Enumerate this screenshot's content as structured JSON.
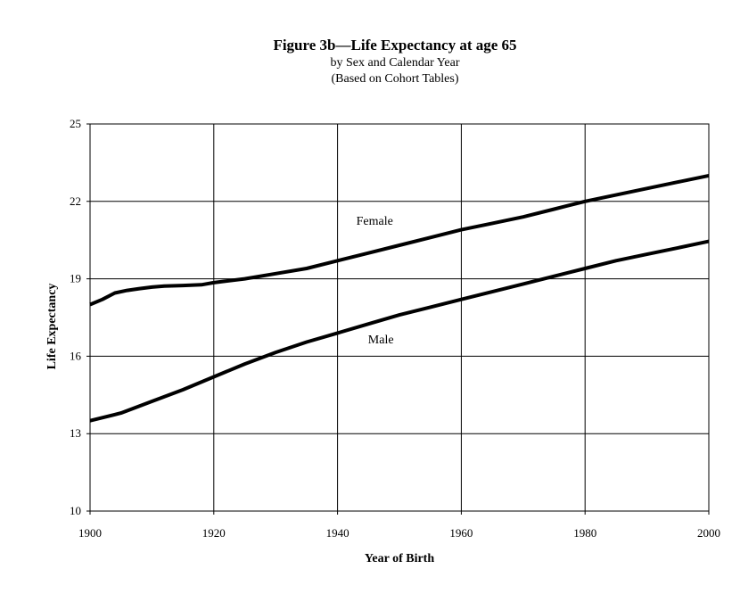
{
  "chart_data": {
    "type": "line",
    "title": "Figure 3b—Life Expectancy at age 65",
    "subtitle_1": "by Sex and Calendar Year",
    "subtitle_2": "(Based on Cohort Tables)",
    "xlabel": "Year of Birth",
    "ylabel": "Life Expectancy",
    "xlim": [
      1900,
      2000
    ],
    "ylim": [
      10,
      25
    ],
    "x_ticks": [
      1900,
      1920,
      1940,
      1960,
      1980,
      2000
    ],
    "y_ticks": [
      10,
      13,
      16,
      19,
      22,
      25
    ],
    "grid": true,
    "legend": "none",
    "series": [
      {
        "name": "Female",
        "color": "#000000",
        "x": [
          1900,
          1902,
          1904,
          1906,
          1908,
          1910,
          1912,
          1915,
          1918,
          1920,
          1925,
          1930,
          1935,
          1940,
          1945,
          1950,
          1955,
          1960,
          1965,
          1970,
          1975,
          1980,
          1985,
          1990,
          1995,
          2000
        ],
        "y": [
          18.0,
          18.2,
          18.45,
          18.55,
          18.62,
          18.68,
          18.72,
          18.74,
          18.77,
          18.85,
          19.0,
          19.2,
          19.4,
          19.7,
          20.0,
          20.3,
          20.6,
          20.9,
          21.15,
          21.4,
          21.7,
          22.0,
          22.25,
          22.5,
          22.75,
          23.0
        ],
        "label": "Female"
      },
      {
        "name": "Male",
        "color": "#000000",
        "x": [
          1900,
          1905,
          1910,
          1915,
          1920,
          1925,
          1930,
          1935,
          1940,
          1945,
          1950,
          1955,
          1960,
          1965,
          1970,
          1975,
          1980,
          1985,
          1990,
          1995,
          2000
        ],
        "y": [
          13.5,
          13.8,
          14.25,
          14.7,
          15.2,
          15.7,
          16.15,
          16.55,
          16.9,
          17.25,
          17.6,
          17.9,
          18.2,
          18.5,
          18.8,
          19.1,
          19.4,
          19.7,
          19.95,
          20.2,
          20.45
        ],
        "label": "Male"
      }
    ]
  }
}
